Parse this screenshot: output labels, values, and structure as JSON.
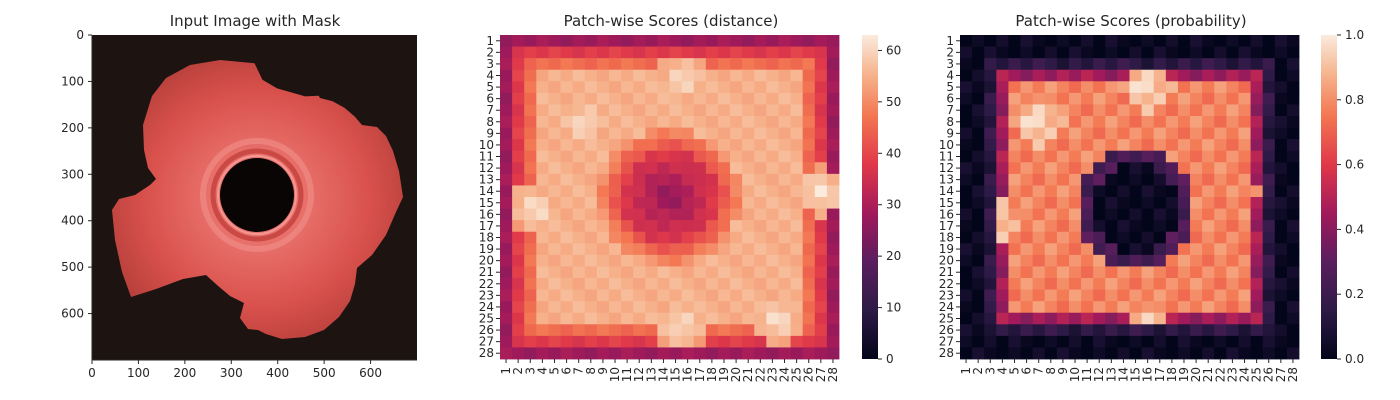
{
  "chart_data": [
    {
      "type": "image",
      "title": "Input Image with Mask",
      "x_ticks": [
        "0",
        "100",
        "200",
        "300",
        "400",
        "500",
        "600"
      ],
      "y_ticks": [
        "0",
        "100",
        "200",
        "300",
        "400",
        "500",
        "600"
      ],
      "xlim": [
        0,
        700
      ],
      "ylim": [
        700,
        0
      ],
      "object": "gear-shaped part with central hole, tinted red by mask overlay",
      "colors": {
        "background": "#1d1412",
        "mask": "#d9514c",
        "hole": "#0a0505"
      }
    },
    {
      "type": "heatmap",
      "title": "Patch-wise Scores (distance)",
      "x_tick_labels": [
        "1",
        "2",
        "3",
        "4",
        "5",
        "6",
        "7",
        "8",
        "9",
        "10",
        "11",
        "12",
        "13",
        "14",
        "15",
        "16",
        "17",
        "18",
        "19",
        "20",
        "21",
        "22",
        "23",
        "24",
        "25",
        "26",
        "27",
        "28"
      ],
      "y_tick_labels": [
        "1",
        "2",
        "3",
        "4",
        "5",
        "6",
        "7",
        "8",
        "9",
        "10",
        "11",
        "12",
        "13",
        "14",
        "15",
        "16",
        "17",
        "18",
        "19",
        "20",
        "21",
        "22",
        "23",
        "24",
        "25",
        "26",
        "27",
        "28"
      ],
      "colorbar": {
        "min": 0,
        "max": 63,
        "ticks": [
          "0",
          "10",
          "20",
          "30",
          "40",
          "50",
          "60"
        ]
      },
      "colormap": "rocket",
      "rows": 28,
      "cols": 28
    },
    {
      "type": "heatmap",
      "title": "Patch-wise Scores (probability)",
      "x_tick_labels": [
        "1",
        "2",
        "3",
        "4",
        "5",
        "6",
        "7",
        "8",
        "9",
        "10",
        "11",
        "12",
        "13",
        "14",
        "15",
        "16",
        "17",
        "18",
        "19",
        "20",
        "21",
        "22",
        "23",
        "24",
        "25",
        "26",
        "27",
        "28"
      ],
      "y_tick_labels": [
        "1",
        "2",
        "3",
        "4",
        "5",
        "6",
        "7",
        "8",
        "9",
        "10",
        "11",
        "12",
        "13",
        "14",
        "15",
        "16",
        "17",
        "18",
        "19",
        "20",
        "21",
        "22",
        "23",
        "24",
        "25",
        "26",
        "27",
        "28"
      ],
      "colorbar": {
        "min": 0,
        "max": 1.0,
        "ticks": [
          "0.0",
          "0.2",
          "0.4",
          "0.6",
          "0.8",
          "1.0"
        ]
      },
      "colormap": "rocket",
      "rows": 28,
      "cols": 28
    }
  ]
}
